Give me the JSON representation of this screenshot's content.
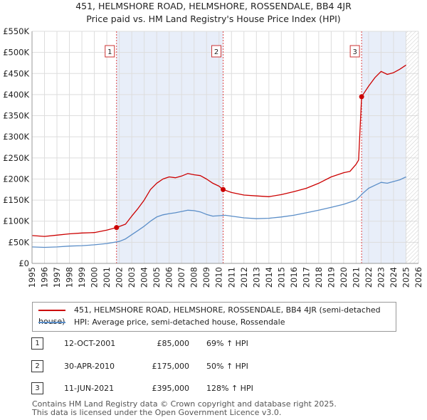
{
  "chart_data": {
    "type": "line",
    "title": "451, HELMSHORE ROAD, HELMSHORE, ROSSENDALE, BB4 4JR",
    "subtitle": "Price paid vs. HM Land Registry's House Price Index (HPI)",
    "xlabel": "",
    "ylabel": "",
    "xlim": [
      1995,
      2026
    ],
    "ylim": [
      0,
      550000
    ],
    "x_ticks": [
      1995,
      1996,
      1997,
      1998,
      1999,
      2000,
      2001,
      2002,
      2003,
      2004,
      2005,
      2006,
      2007,
      2008,
      2009,
      2010,
      2011,
      2012,
      2013,
      2014,
      2015,
      2016,
      2017,
      2018,
      2019,
      2020,
      2021,
      2022,
      2023,
      2024,
      2025,
      2026
    ],
    "x_tick_labels": [
      "1995",
      "1996",
      "1997",
      "1998",
      "1999",
      "2000",
      "2001",
      "2002",
      "2003",
      "2004",
      "2005",
      "2006",
      "2007",
      "2008",
      "2009",
      "2010",
      "2011",
      "2012",
      "2013",
      "2014",
      "2015",
      "2016",
      "2017",
      "2018",
      "2019",
      "2020",
      "2021",
      "2022",
      "2023",
      "2024",
      "2025",
      "2026"
    ],
    "y_ticks": [
      0,
      50000,
      100000,
      150000,
      200000,
      250000,
      300000,
      350000,
      400000,
      450000,
      500000,
      550000
    ],
    "y_tick_labels": [
      "£0",
      "£50K",
      "£100K",
      "£150K",
      "£200K",
      "£250K",
      "£300K",
      "£350K",
      "£400K",
      "£450K",
      "£500K",
      "£550K"
    ],
    "grid": true,
    "shaded_periods": [
      [
        2001.78,
        2010.33
      ],
      [
        2021.44,
        2025.0
      ]
    ],
    "series": [
      {
        "name": "451, HELMSHORE ROAD, HELMSHORE, ROSSENDALE, BB4 4JR (semi-detached house)",
        "color": "#cc0000",
        "x": [
          1995.0,
          1996.0,
          1997.0,
          1998.0,
          1999.0,
          2000.0,
          2001.0,
          2001.78,
          2002.5,
          2003.0,
          2003.5,
          2004.0,
          2004.5,
          2005.0,
          2005.5,
          2006.0,
          2006.5,
          2007.0,
          2007.5,
          2008.0,
          2008.5,
          2009.0,
          2009.5,
          2010.0,
          2010.33,
          2011.0,
          2012.0,
          2013.0,
          2014.0,
          2015.0,
          2016.0,
          2017.0,
          2018.0,
          2019.0,
          2020.0,
          2020.5,
          2021.0,
          2021.2,
          2021.44,
          2022.0,
          2022.5,
          2023.0,
          2023.5,
          2024.0,
          2024.5,
          2025.0
        ],
        "values": [
          66000,
          64000,
          67000,
          70000,
          72000,
          73000,
          79000,
          85000,
          93000,
          112000,
          130000,
          150000,
          175000,
          190000,
          200000,
          205000,
          203000,
          207000,
          213000,
          210000,
          208000,
          200000,
          190000,
          183000,
          175000,
          168000,
          162000,
          160000,
          158000,
          163000,
          170000,
          178000,
          190000,
          205000,
          215000,
          218000,
          235000,
          245000,
          395000,
          420000,
          440000,
          455000,
          448000,
          452000,
          460000,
          470000
        ]
      },
      {
        "name": "HPI: Average price, semi-detached house, Rossendale",
        "color": "#5b8ec8",
        "x": [
          1995.0,
          1996.0,
          1997.0,
          1998.0,
          1999.0,
          2000.0,
          2001.0,
          2002.0,
          2002.5,
          2003.0,
          2003.5,
          2004.0,
          2004.5,
          2005.0,
          2005.5,
          2006.0,
          2006.5,
          2007.0,
          2007.5,
          2008.0,
          2008.5,
          2009.0,
          2009.5,
          2010.0,
          2010.5,
          2011.0,
          2012.0,
          2013.0,
          2014.0,
          2015.0,
          2016.0,
          2017.0,
          2018.0,
          2019.0,
          2020.0,
          2021.0,
          2021.5,
          2022.0,
          2022.5,
          2023.0,
          2023.5,
          2024.0,
          2024.5,
          2025.0
        ],
        "values": [
          39000,
          38000,
          39000,
          41000,
          42000,
          44000,
          47000,
          52000,
          58000,
          68000,
          78000,
          88000,
          100000,
          110000,
          115000,
          118000,
          120000,
          123000,
          126000,
          125000,
          122000,
          116000,
          112000,
          113000,
          114000,
          112000,
          108000,
          106000,
          107000,
          110000,
          114000,
          120000,
          126000,
          133000,
          140000,
          150000,
          165000,
          178000,
          185000,
          192000,
          190000,
          194000,
          198000,
          205000
        ]
      }
    ],
    "sale_markers": [
      {
        "label": "1",
        "x": 2001.78,
        "value": 85000
      },
      {
        "label": "2",
        "x": 2010.33,
        "value": 175000
      },
      {
        "label": "3",
        "x": 2021.44,
        "value": 395000
      }
    ]
  },
  "legend": {
    "items": [
      {
        "label": "451, HELMSHORE ROAD, HELMSHORE, ROSSENDALE, BB4 4JR (semi-detached house)",
        "color": "#cc0000"
      },
      {
        "label": "HPI: Average price, semi-detached house, Rossendale",
        "color": "#5b8ec8"
      }
    ]
  },
  "transactions": [
    {
      "num": "1",
      "date": "12-OCT-2001",
      "price": "£85,000",
      "hpi": "69% ↑ HPI"
    },
    {
      "num": "2",
      "date": "30-APR-2010",
      "price": "£175,000",
      "hpi": "50% ↑ HPI"
    },
    {
      "num": "3",
      "date": "11-JUN-2021",
      "price": "£395,000",
      "hpi": "128% ↑ HPI"
    }
  ],
  "footer": {
    "line1": "Contains HM Land Registry data © Crown copyright and database right 2025.",
    "line2": "This data is licensed under the Open Government Licence v3.0."
  },
  "colors": {
    "shade": "#e8eef9",
    "grid": "#dddddd",
    "vline": "#dd4444"
  }
}
